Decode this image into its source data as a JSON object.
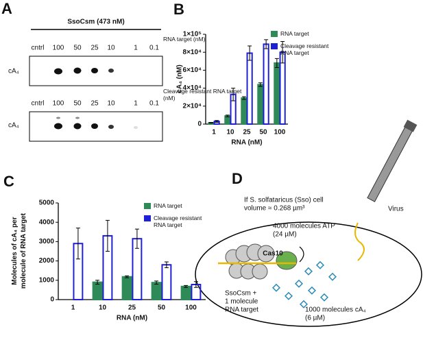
{
  "panel_a": {
    "label": "A",
    "enzyme": "SsoCsm (473 nM)",
    "top_title": "RNA target (nM)",
    "bottom_title": "Cleavage resistant RNA target (nM)",
    "lanes_top": [
      "cntrl",
      "100",
      "50",
      "25",
      "10",
      "1",
      "0.1"
    ],
    "lanes_bottom": [
      "cntrl",
      "100",
      "50",
      "25",
      "10",
      "1",
      "0.1"
    ],
    "band_top": "cA₄",
    "band_bottom": "cA₄"
  },
  "chart_data": [
    {
      "type": "bar",
      "label": "B",
      "xlabel": "RNA (nM)",
      "ylabel": [
        "cA₄ (nM)"
      ],
      "categories": [
        "1",
        "10",
        "25",
        "50",
        "100"
      ],
      "series": [
        {
          "name": "RNA target",
          "color": "#2e8b57",
          "values": [
            1500,
            9000,
            29000,
            44000,
            68000
          ],
          "errors": [
            300,
            1000,
            1500,
            2000,
            5000
          ]
        },
        {
          "name": "Cleavage resistant RNA target",
          "color": "#1f1fd6",
          "values": [
            3000,
            33000,
            79000,
            89000,
            80000
          ],
          "errors": [
            1000,
            7000,
            8000,
            5000,
            12000
          ]
        }
      ],
      "ylim": [
        0,
        100000
      ],
      "yticks": [
        0,
        {
          "value": 20000,
          "label": "2×10⁴"
        },
        {
          "value": 40000,
          "label": "4×10⁴"
        },
        {
          "value": 60000,
          "label": "6×10⁴"
        },
        {
          "value": 80000,
          "label": "8×10⁴"
        },
        {
          "value": 100000,
          "label": "1×10⁵"
        }
      ]
    },
    {
      "type": "bar",
      "label": "C",
      "xlabel": "RNA (nM)",
      "ylabel": [
        "Molecules of cA₄ per",
        "molecule of RNA target"
      ],
      "categories": [
        "1",
        "10",
        "25",
        "50",
        "100"
      ],
      "series": [
        {
          "name": "RNA target",
          "color": "#2e8b57",
          "values": [
            null,
            900,
            1180,
            880,
            680
          ],
          "errors": [
            null,
            100,
            50,
            80,
            50
          ]
        },
        {
          "name": "Cleavage resistant RNA target",
          "color": "#1f1fd6",
          "values": [
            2900,
            3300,
            3150,
            1800,
            780
          ],
          "errors": [
            800,
            800,
            500,
            150,
            150
          ]
        }
      ],
      "ylim": [
        0,
        5000
      ],
      "yticks": [
        0,
        1000,
        2000,
        3000,
        4000,
        5000
      ]
    }
  ],
  "panel_d": {
    "label": "D",
    "cell_note": [
      "If S. solfataricus (Sso) cell",
      "volume ≈ 0.268 µm³"
    ],
    "virus": "Virus",
    "atp": [
      "4000 molecules ATP",
      "(24 µM)"
    ],
    "csm": [
      "SsoCsm +",
      "1 molecule",
      "RNA target"
    ],
    "cas10": "Cas10",
    "ca4": [
      "1000 molecules cA₄",
      "(6 µM)"
    ]
  }
}
